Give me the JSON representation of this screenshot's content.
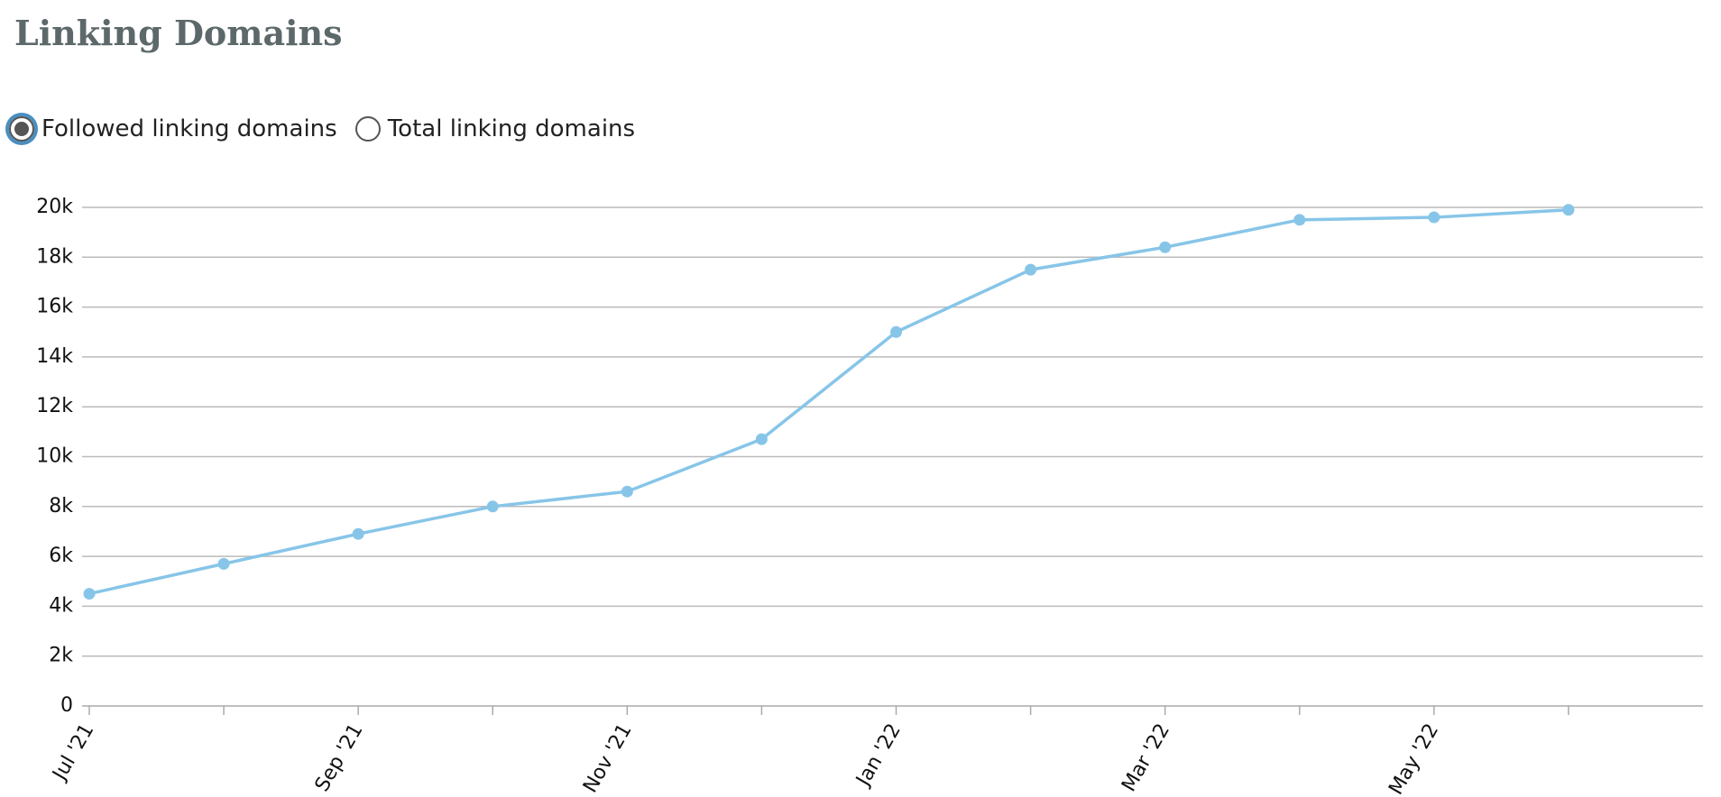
{
  "title": "Linking Domains",
  "controls": {
    "options": [
      {
        "label": "Followed linking domains",
        "selected": true
      },
      {
        "label": "Total linking domains",
        "selected": false
      }
    ]
  },
  "chart_data": {
    "type": "line",
    "categories": [
      "Jul '21",
      null,
      "Sep '21",
      null,
      "Nov '21",
      null,
      "Jan '22",
      null,
      "Mar '22",
      null,
      "May '22",
      null
    ],
    "series": [
      {
        "name": "Followed linking domains",
        "color": "#87c5e8",
        "values": [
          4500,
          5700,
          6900,
          8000,
          8600,
          10700,
          15000,
          17500,
          18400,
          19500,
          19600,
          19900
        ]
      }
    ],
    "ylim": [
      0,
      20000
    ],
    "yticks": [
      0,
      {
        "value": 2000,
        "label": "2k"
      },
      {
        "value": 4000,
        "label": "4k"
      },
      {
        "value": 6000,
        "label": "6k"
      },
      {
        "value": 8000,
        "label": "8k"
      },
      {
        "value": 10000,
        "label": "10k"
      },
      {
        "value": 12000,
        "label": "12k"
      },
      {
        "value": 14000,
        "label": "14k"
      },
      {
        "value": 16000,
        "label": "16k"
      },
      {
        "value": 18000,
        "label": "18k"
      },
      {
        "value": 20000,
        "label": "20k"
      }
    ],
    "grid": true
  }
}
